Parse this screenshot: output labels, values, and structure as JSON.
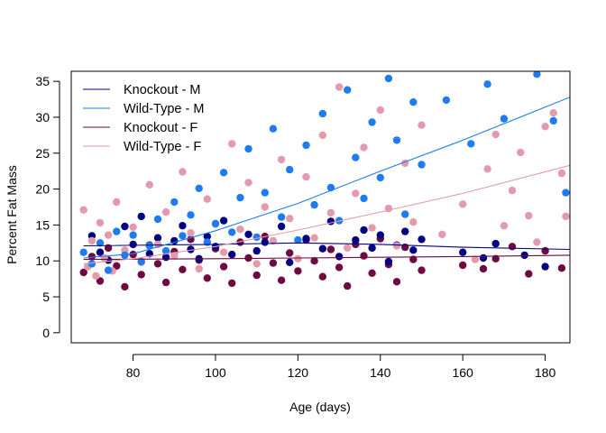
{
  "chart_data": {
    "type": "scatter",
    "title": "",
    "xlabel": "Age (days)",
    "ylabel": "Percent Fat Mass",
    "xlim": [
      65,
      186
    ],
    "ylim": [
      -1.4,
      36.4
    ],
    "xticks": [
      80,
      100,
      120,
      140,
      160,
      180
    ],
    "yticks": [
      0,
      5,
      10,
      15,
      20,
      25,
      30,
      35
    ],
    "grid": false,
    "legend_position": "top-left",
    "series": [
      {
        "name": "Knockout - M",
        "color": "#000080",
        "trend": [
          [
            68,
            12.1
          ],
          [
            100,
            12.3
          ],
          [
            120,
            12.5
          ],
          [
            140,
            12.3
          ],
          [
            160,
            11.9
          ],
          [
            186,
            11.6
          ]
        ],
        "points": [
          [
            70,
            13.5
          ],
          [
            72,
            11.2
          ],
          [
            74,
            10.1
          ],
          [
            78,
            14.8
          ],
          [
            80,
            12.3
          ],
          [
            82,
            16.2
          ],
          [
            84,
            11.0
          ],
          [
            86,
            13.2
          ],
          [
            88,
            10.5
          ],
          [
            90,
            12.8
          ],
          [
            92,
            14.9
          ],
          [
            94,
            11.6
          ],
          [
            96,
            10.3
          ],
          [
            98,
            13.4
          ],
          [
            100,
            12.0
          ],
          [
            102,
            15.6
          ],
          [
            104,
            10.9
          ],
          [
            108,
            13.7
          ],
          [
            110,
            11.4
          ],
          [
            112,
            12.6
          ],
          [
            116,
            14.8
          ],
          [
            118,
            9.8
          ],
          [
            122,
            13.1
          ],
          [
            126,
            11.7
          ],
          [
            128,
            15.5
          ],
          [
            130,
            10.6
          ],
          [
            134,
            12.9
          ],
          [
            136,
            14.3
          ],
          [
            138,
            11.8
          ],
          [
            140,
            13.6
          ],
          [
            142,
            9.9
          ],
          [
            144,
            12.2
          ],
          [
            146,
            14.1
          ],
          [
            148,
            11.5
          ],
          [
            150,
            13.0
          ],
          [
            160,
            11.2
          ],
          [
            165,
            10.4
          ],
          [
            168,
            12.4
          ],
          [
            175,
            10.8
          ],
          [
            180,
            9.2
          ]
        ]
      },
      {
        "name": "Wild-Type - M",
        "color": "#1E7CF0",
        "trend": [
          [
            68,
            10.4
          ],
          [
            80,
            11.0
          ],
          [
            100,
            14.2
          ],
          [
            120,
            18.0
          ],
          [
            140,
            22.5
          ],
          [
            160,
            26.8
          ],
          [
            186,
            32.8
          ]
        ],
        "points": [
          [
            68,
            11.2
          ],
          [
            70,
            9.6
          ],
          [
            72,
            12.5
          ],
          [
            74,
            8.7
          ],
          [
            76,
            14.1
          ],
          [
            78,
            10.8
          ],
          [
            80,
            13.6
          ],
          [
            82,
            9.9
          ],
          [
            84,
            12.1
          ],
          [
            86,
            15.8
          ],
          [
            88,
            11.4
          ],
          [
            90,
            18.2
          ],
          [
            92,
            13.5
          ],
          [
            94,
            16.4
          ],
          [
            96,
            20.1
          ],
          [
            98,
            12.6
          ],
          [
            100,
            15.2
          ],
          [
            102,
            22.3
          ],
          [
            104,
            14.0
          ],
          [
            106,
            18.8
          ],
          [
            108,
            25.6
          ],
          [
            110,
            13.3
          ],
          [
            112,
            19.5
          ],
          [
            114,
            28.4
          ],
          [
            116,
            16.1
          ],
          [
            118,
            22.7
          ],
          [
            120,
            12.9
          ],
          [
            122,
            26.1
          ],
          [
            124,
            17.8
          ],
          [
            126,
            30.5
          ],
          [
            128,
            20.2
          ],
          [
            130,
            15.6
          ],
          [
            132,
            33.8
          ],
          [
            134,
            24.4
          ],
          [
            136,
            18.7
          ],
          [
            138,
            29.3
          ],
          [
            140,
            21.6
          ],
          [
            142,
            35.4
          ],
          [
            144,
            26.8
          ],
          [
            146,
            16.5
          ],
          [
            148,
            32.1
          ],
          [
            150,
            23.4
          ],
          [
            156,
            32.4
          ],
          [
            162,
            26.3
          ],
          [
            166,
            34.6
          ],
          [
            170,
            29.8
          ],
          [
            178,
            36.0
          ],
          [
            182,
            29.5
          ],
          [
            185,
            19.5
          ]
        ]
      },
      {
        "name": "Knockout - F",
        "color": "#6E0A40",
        "trend": [
          [
            68,
            10.2
          ],
          [
            100,
            10.3
          ],
          [
            120,
            10.4
          ],
          [
            140,
            10.5
          ],
          [
            160,
            10.6
          ],
          [
            186,
            10.8
          ]
        ],
        "points": [
          [
            68,
            8.4
          ],
          [
            70,
            10.6
          ],
          [
            72,
            7.2
          ],
          [
            74,
            11.8
          ],
          [
            76,
            9.3
          ],
          [
            78,
            6.4
          ],
          [
            80,
            10.9
          ],
          [
            82,
            8.1
          ],
          [
            84,
            12.2
          ],
          [
            86,
            9.6
          ],
          [
            88,
            7.0
          ],
          [
            90,
            11.3
          ],
          [
            92,
            8.8
          ],
          [
            94,
            13.0
          ],
          [
            96,
            10.1
          ],
          [
            98,
            7.6
          ],
          [
            100,
            11.7
          ],
          [
            102,
            9.2
          ],
          [
            104,
            6.9
          ],
          [
            106,
            12.6
          ],
          [
            108,
            10.4
          ],
          [
            110,
            8.0
          ],
          [
            112,
            13.4
          ],
          [
            114,
            9.7
          ],
          [
            116,
            7.3
          ],
          [
            118,
            11.1
          ],
          [
            120,
            8.6
          ],
          [
            122,
            12.9
          ],
          [
            124,
            10.0
          ],
          [
            126,
            7.8
          ],
          [
            128,
            11.6
          ],
          [
            130,
            9.1
          ],
          [
            132,
            6.5
          ],
          [
            134,
            12.3
          ],
          [
            136,
            10.7
          ],
          [
            138,
            8.3
          ],
          [
            140,
            13.1
          ],
          [
            142,
            9.5
          ],
          [
            144,
            7.1
          ],
          [
            146,
            11.9
          ],
          [
            148,
            10.2
          ],
          [
            150,
            8.7
          ],
          [
            160,
            9.4
          ],
          [
            165,
            8.9
          ],
          [
            168,
            10.3
          ],
          [
            172,
            12.0
          ],
          [
            176,
            8.2
          ],
          [
            180,
            11.4
          ],
          [
            184,
            9.0
          ]
        ]
      },
      {
        "name": "Wild-Type - F",
        "color": "#E39AAA",
        "trend": [
          [
            68,
            9.6
          ],
          [
            80,
            10.3
          ],
          [
            100,
            12.0
          ],
          [
            120,
            14.3
          ],
          [
            140,
            16.8
          ],
          [
            160,
            19.4
          ],
          [
            186,
            23.3
          ]
        ],
        "points": [
          [
            68,
            17.1
          ],
          [
            69,
            9.2
          ],
          [
            70,
            12.8
          ],
          [
            71,
            7.9
          ],
          [
            72,
            15.3
          ],
          [
            73,
            10.4
          ],
          [
            74,
            13.6
          ],
          [
            75,
            8.6
          ],
          [
            76,
            18.2
          ],
          [
            78,
            11.5
          ],
          [
            80,
            14.7
          ],
          [
            82,
            9.8
          ],
          [
            84,
            20.6
          ],
          [
            86,
            12.3
          ],
          [
            88,
            16.8
          ],
          [
            90,
            10.7
          ],
          [
            92,
            22.4
          ],
          [
            94,
            13.9
          ],
          [
            96,
            8.9
          ],
          [
            98,
            18.6
          ],
          [
            100,
            15.1
          ],
          [
            102,
            11.2
          ],
          [
            104,
            26.3
          ],
          [
            106,
            14.4
          ],
          [
            108,
            20.9
          ],
          [
            110,
            9.6
          ],
          [
            112,
            17.5
          ],
          [
            114,
            12.8
          ],
          [
            116,
            24.1
          ],
          [
            118,
            15.9
          ],
          [
            120,
            10.3
          ],
          [
            122,
            21.7
          ],
          [
            124,
            13.2
          ],
          [
            126,
            27.5
          ],
          [
            128,
            16.7
          ],
          [
            130,
            34.2
          ],
          [
            132,
            11.8
          ],
          [
            134,
            19.4
          ],
          [
            136,
            25.8
          ],
          [
            138,
            14.6
          ],
          [
            140,
            31.0
          ],
          [
            142,
            17.3
          ],
          [
            144,
            12.1
          ],
          [
            146,
            23.6
          ],
          [
            148,
            15.4
          ],
          [
            150,
            28.9
          ],
          [
            155,
            13.7
          ],
          [
            160,
            17.9
          ],
          [
            163,
            10.2
          ],
          [
            166,
            22.8
          ],
          [
            168,
            27.6
          ],
          [
            170,
            14.9
          ],
          [
            172,
            19.8
          ],
          [
            174,
            25.1
          ],
          [
            176,
            16.3
          ],
          [
            178,
            12.6
          ],
          [
            180,
            28.7
          ],
          [
            182,
            30.6
          ],
          [
            184,
            22.2
          ],
          [
            185,
            16.2
          ]
        ]
      }
    ]
  }
}
